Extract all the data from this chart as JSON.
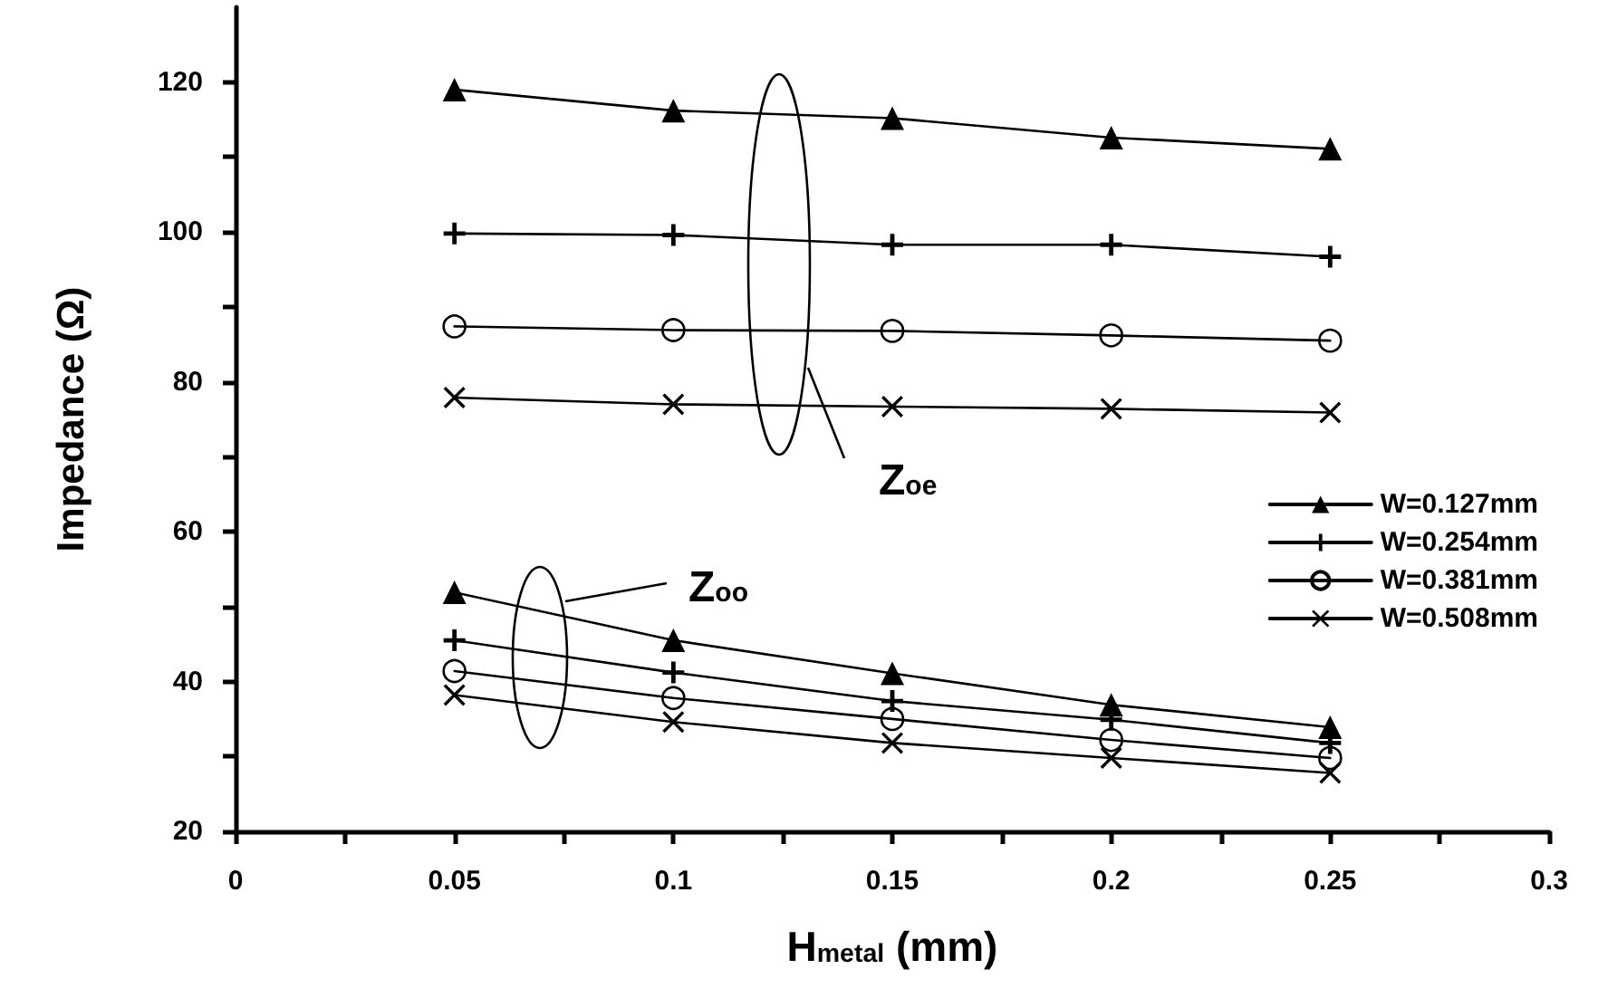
{
  "chart_data": {
    "type": "line",
    "xlabel": "H$_{metal}$ (mm)",
    "ylabel": "Impedance (Ω)",
    "xlim": [
      0,
      0.3
    ],
    "xticks": [
      0,
      {
        "value": 0.025,
        "label": null
      },
      0.05,
      {
        "value": 0.075,
        "label": null
      },
      0.1,
      {
        "value": 0.125,
        "label": null
      },
      0.15,
      {
        "value": 0.175,
        "label": null
      },
      0.2,
      {
        "value": 0.225,
        "label": null
      },
      0.25,
      {
        "value": 0.275,
        "label": null
      },
      0.3
    ],
    "ylim": [
      20,
      130
    ],
    "yticks": [
      20,
      {
        "value": 30,
        "label": null
      },
      40,
      {
        "value": 50,
        "label": null
      },
      60,
      {
        "value": 70,
        "label": null
      },
      80,
      {
        "value": 90,
        "label": null
      },
      100,
      {
        "value": 110,
        "label": null
      },
      120
    ],
    "x": [
      0.05,
      0.1,
      0.15,
      0.2,
      0.25
    ],
    "grid": false,
    "legend": "right",
    "line_style": "solid",
    "series": [
      {
        "name": "W=0.127mm",
        "color": "#000000",
        "marker": "triangle",
        "values": [
          119,
          116.2,
          115.2,
          112.6,
          111.1
        ]
      },
      {
        "name": "W=0.254mm",
        "color": "#000000",
        "marker": "plus",
        "values": [
          99.8,
          99.6,
          98.3,
          98.3,
          96.7
        ]
      },
      {
        "name": "W=0.381mm",
        "color": "#000000",
        "marker": "circle",
        "values": [
          87.4,
          86.9,
          86.8,
          86.2,
          85.5
        ]
      },
      {
        "name": "W=0.508mm",
        "color": "#000000",
        "marker": "cross",
        "values": [
          77.9,
          77.0,
          76.7,
          76.4,
          75.9
        ]
      },
      {
        "color": "#000000",
        "marker": "triangle",
        "values": [
          51.9,
          45.5,
          41.1,
          36.9,
          33.9
        ]
      },
      {
        "color": "#000000",
        "marker": "plus",
        "values": [
          45.5,
          41.2,
          37.4,
          34.9,
          31.8
        ]
      },
      {
        "color": "#000000",
        "marker": "circle",
        "values": [
          41.4,
          37.8,
          35.0,
          32.2,
          29.8
        ]
      },
      {
        "color": "#000000",
        "marker": "cross",
        "values": [
          38.2,
          34.6,
          31.8,
          29.8,
          27.8
        ]
      }
    ],
    "annotations": [
      "Z$_{oe}$",
      "Z$_{oo}$"
    ]
  }
}
